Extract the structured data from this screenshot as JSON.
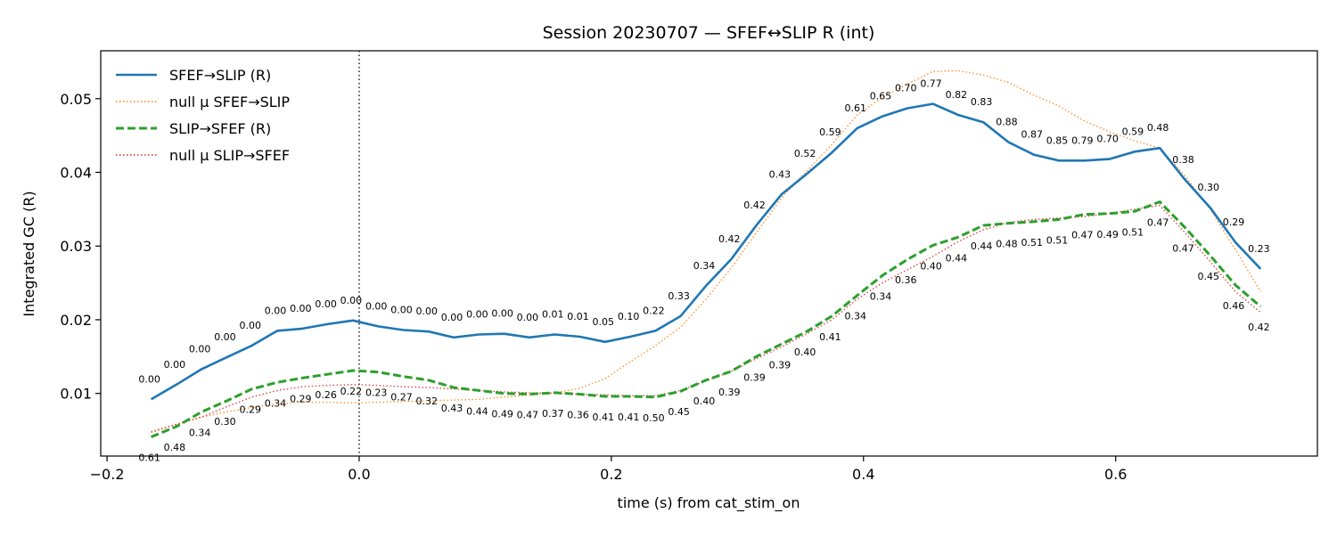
{
  "chart_data": {
    "type": "line",
    "title": "Session 20230707 — SFEF↔SLIP R (int)",
    "xlabel": "time (s) from cat_stim_on",
    "ylabel": "Integrated GC (R)",
    "xlim": [
      -0.205,
      0.76
    ],
    "ylim": [
      0.0015,
      0.0565
    ],
    "xticks": [
      -0.2,
      0.0,
      0.2,
      0.4,
      0.6
    ],
    "xtick_labels": [
      "−0.2",
      "0.0",
      "0.2",
      "0.4",
      "0.6"
    ],
    "yticks": [
      0.01,
      0.02,
      0.03,
      0.04,
      0.05
    ],
    "ytick_labels": [
      "0.01",
      "0.02",
      "0.03",
      "0.04",
      "0.05"
    ],
    "vline_x": 0.0,
    "legend_position": "top-left",
    "x": [
      -0.165,
      -0.145,
      -0.125,
      -0.105,
      -0.085,
      -0.065,
      -0.045,
      -0.025,
      -0.005,
      0.015,
      0.035,
      0.055,
      0.075,
      0.095,
      0.115,
      0.135,
      0.155,
      0.175,
      0.195,
      0.215,
      0.235,
      0.255,
      0.275,
      0.295,
      0.315,
      0.335,
      0.355,
      0.375,
      0.395,
      0.415,
      0.435,
      0.455,
      0.475,
      0.495,
      0.515,
      0.535,
      0.555,
      0.575,
      0.595,
      0.615,
      0.635,
      0.655,
      0.675,
      0.695,
      0.715
    ],
    "series": [
      {
        "name": "SFEF→SLIP (R)",
        "color": "#1f77b4",
        "style": "solid",
        "values": [
          0.0092,
          0.0112,
          0.0133,
          0.0149,
          0.0165,
          0.0185,
          0.0188,
          0.0194,
          0.0199,
          0.0191,
          0.0186,
          0.0184,
          0.0176,
          0.018,
          0.0181,
          0.0176,
          0.018,
          0.0177,
          0.017,
          0.0177,
          0.0185,
          0.0205,
          0.0246,
          0.0282,
          0.0328,
          0.037,
          0.0398,
          0.0427,
          0.046,
          0.0476,
          0.0487,
          0.0493,
          0.0478,
          0.0468,
          0.0441,
          0.0424,
          0.0416,
          0.0416,
          0.0418,
          0.0428,
          0.0433,
          0.039,
          0.0352,
          0.0305,
          0.0269
        ],
        "labels": [
          "0.00",
          "0.00",
          "0.00",
          "0.00",
          "0.00",
          "0.00",
          "0.00",
          "0.00",
          "0.00",
          "0.00",
          "0.00",
          "0.00",
          "0.00",
          "0.00",
          "0.00",
          "0.00",
          "0.01",
          "0.01",
          "0.05",
          "0.10",
          "0.22",
          "0.33",
          "0.34",
          "0.42",
          "0.42",
          "0.43",
          "0.52",
          "0.59",
          "0.61",
          "0.65",
          "0.70",
          "0.77",
          "0.82",
          "0.83",
          "0.88",
          "0.87",
          "0.85",
          "0.79",
          "0.70",
          "0.59",
          "0.48",
          "0.38",
          "0.30",
          "0.29",
          "0.23"
        ]
      },
      {
        "name": "null μ SFEF→SLIP",
        "color": "#ff7f0e",
        "style": "dotted",
        "values": [
          0.0047,
          0.0058,
          0.0068,
          0.0075,
          0.0081,
          0.0086,
          0.0088,
          0.0088,
          0.0087,
          0.0088,
          0.0089,
          0.009,
          0.0091,
          0.0092,
          0.0095,
          0.0098,
          0.0101,
          0.0107,
          0.012,
          0.0143,
          0.0165,
          0.019,
          0.0228,
          0.027,
          0.0318,
          0.0365,
          0.0402,
          0.0438,
          0.0478,
          0.0502,
          0.052,
          0.0537,
          0.0538,
          0.0532,
          0.0522,
          0.0505,
          0.049,
          0.047,
          0.0455,
          0.0443,
          0.0433,
          0.0395,
          0.035,
          0.0295,
          0.0238
        ]
      },
      {
        "name": "SLIP→SFEF (R)",
        "color": "#2ca02c",
        "style": "dashed",
        "values": [
          0.0041,
          0.0055,
          0.0075,
          0.009,
          0.0106,
          0.0115,
          0.0121,
          0.0126,
          0.0131,
          0.0129,
          0.0123,
          0.0118,
          0.0108,
          0.0104,
          0.01,
          0.0099,
          0.0101,
          0.0099,
          0.0096,
          0.0096,
          0.0095,
          0.0103,
          0.0118,
          0.013,
          0.015,
          0.0167,
          0.0184,
          0.0205,
          0.0233,
          0.026,
          0.0282,
          0.0301,
          0.0312,
          0.0328,
          0.0331,
          0.0333,
          0.0336,
          0.0343,
          0.0344,
          0.0347,
          0.036,
          0.0325,
          0.0287,
          0.0247,
          0.0218
        ],
        "labels": [
          "0.61",
          "0.48",
          "0.34",
          "0.30",
          "0.29",
          "0.34",
          "0.29",
          "0.26",
          "0.22",
          "0.23",
          "0.27",
          "0.32",
          "0.43",
          "0.44",
          "0.49",
          "0.47",
          "0.37",
          "0.36",
          "0.41",
          "0.41",
          "0.50",
          "0.45",
          "0.40",
          "0.39",
          "0.39",
          "0.39",
          "0.40",
          "0.41",
          "0.34",
          "0.34",
          "0.36",
          "0.40",
          "0.44",
          "0.44",
          "0.48",
          "0.51",
          "0.51",
          "0.47",
          "0.49",
          "0.51",
          "0.47",
          "0.47",
          "0.45",
          "0.46",
          "0.42"
        ]
      },
      {
        "name": "null μ SLIP→SFEF",
        "color": "#d62728",
        "style": "dotted",
        "values": [
          0.0048,
          0.0058,
          0.0068,
          0.0082,
          0.0095,
          0.0104,
          0.0109,
          0.0111,
          0.0112,
          0.0111,
          0.0109,
          0.0108,
          0.0106,
          0.0104,
          0.0102,
          0.0101,
          0.01,
          0.0099,
          0.0098,
          0.0097,
          0.0097,
          0.0104,
          0.0117,
          0.013,
          0.0147,
          0.0163,
          0.0181,
          0.02,
          0.0228,
          0.025,
          0.0268,
          0.0286,
          0.0306,
          0.0322,
          0.0332,
          0.0336,
          0.0338,
          0.034,
          0.0344,
          0.035,
          0.0355,
          0.0318,
          0.0279,
          0.0238,
          0.021
        ]
      }
    ]
  }
}
